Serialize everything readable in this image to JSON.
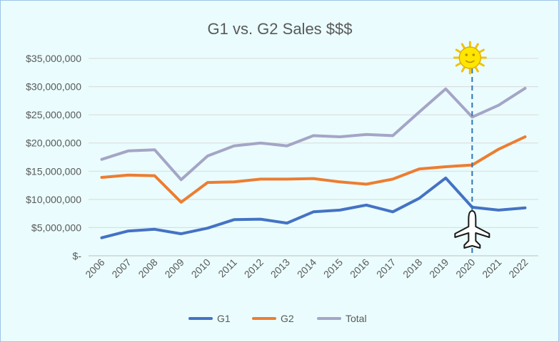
{
  "chart_data": {
    "type": "line",
    "title": "G1 vs. G2 Sales $$$",
    "xlabel": "",
    "ylabel": "",
    "categories": [
      "2006",
      "2007",
      "2008",
      "2009",
      "2010",
      "2011",
      "2012",
      "2013",
      "2014",
      "2015",
      "2016",
      "2017",
      "2018",
      "2019",
      "2020",
      "2021",
      "2022"
    ],
    "ylim": [
      0,
      35000000
    ],
    "yticks": [
      {
        "value": 0,
        "label": "$-"
      },
      {
        "value": 5000000,
        "label": "$5,000,000"
      },
      {
        "value": 10000000,
        "label": "$10,000,000"
      },
      {
        "value": 15000000,
        "label": "$15,000,000"
      },
      {
        "value": 20000000,
        "label": "$20,000,000"
      },
      {
        "value": 25000000,
        "label": "$25,000,000"
      },
      {
        "value": 30000000,
        "label": "$30,000,000"
      },
      {
        "value": 35000000,
        "label": "$35,000,000"
      }
    ],
    "grid": true,
    "legend_position": "bottom",
    "series": [
      {
        "name": "G1",
        "color": "#4472c4",
        "values": [
          3200000,
          4400000,
          4700000,
          3900000,
          4900000,
          6400000,
          6500000,
          5800000,
          7800000,
          8100000,
          9000000,
          7800000,
          10200000,
          13800000,
          8600000,
          8100000,
          8500000
        ]
      },
      {
        "name": "G2",
        "color": "#ed7d31",
        "values": [
          13900000,
          14300000,
          14200000,
          9500000,
          13000000,
          13100000,
          13600000,
          13600000,
          13700000,
          13100000,
          12700000,
          13600000,
          15400000,
          15800000,
          16100000,
          18900000,
          21100000
        ]
      },
      {
        "name": "Total",
        "color": "#a5a5c6",
        "values": [
          17100000,
          18600000,
          18800000,
          13500000,
          17700000,
          19500000,
          20000000,
          19500000,
          21300000,
          21100000,
          21500000,
          21300000,
          25500000,
          29600000,
          24600000,
          26700000,
          29700000
        ]
      }
    ],
    "annotations": [
      {
        "type": "dashed-vertical-line",
        "category": "2020",
        "color": "#2e75b6"
      },
      {
        "type": "sun-icon",
        "category": "2020",
        "position": "top"
      },
      {
        "type": "airplane-icon",
        "category": "2020",
        "position": "bottom"
      }
    ]
  }
}
